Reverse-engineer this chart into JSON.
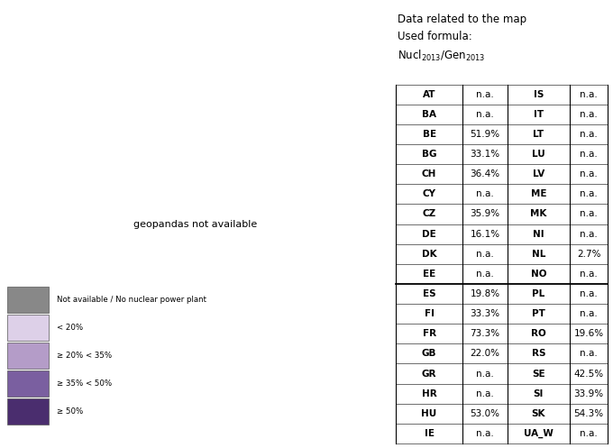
{
  "table_data": [
    [
      "AT",
      "n.a.",
      "IS",
      "n.a."
    ],
    [
      "BA",
      "n.a.",
      "IT",
      "n.a."
    ],
    [
      "BE",
      "51.9%",
      "LT",
      "n.a."
    ],
    [
      "BG",
      "33.1%",
      "LU",
      "n.a."
    ],
    [
      "CH",
      "36.4%",
      "LV",
      "n.a."
    ],
    [
      "CY",
      "n.a.",
      "ME",
      "n.a."
    ],
    [
      "CZ",
      "35.9%",
      "MK",
      "n.a."
    ],
    [
      "DE",
      "16.1%",
      "NI",
      "n.a."
    ],
    [
      "DK",
      "n.a.",
      "NL",
      "2.7%"
    ],
    [
      "EE",
      "n.a.",
      "NO",
      "n.a."
    ],
    [
      "ES",
      "19.8%",
      "PL",
      "n.a."
    ],
    [
      "FI",
      "33.3%",
      "PT",
      "n.a."
    ],
    [
      "FR",
      "73.3%",
      "RO",
      "19.6%"
    ],
    [
      "GB",
      "22.0%",
      "RS",
      "n.a."
    ],
    [
      "GR",
      "n.a.",
      "SE",
      "42.5%"
    ],
    [
      "HR",
      "n.a.",
      "SI",
      "33.9%"
    ],
    [
      "HU",
      "53.0%",
      "SK",
      "54.3%"
    ],
    [
      "IE",
      "n.a.",
      "UA_W",
      "n.a."
    ]
  ],
  "country_values": {
    "AT": null,
    "BA": null,
    "BE": 51.9,
    "BG": 33.1,
    "CH": 36.4,
    "CY": null,
    "CZ": 35.9,
    "DE": 16.1,
    "DK": null,
    "EE": null,
    "ES": 19.8,
    "FI": 33.3,
    "FR": 73.3,
    "GB": 22.0,
    "GR": null,
    "HR": null,
    "HU": 53.0,
    "IE": null,
    "IS": null,
    "IT": null,
    "LT": null,
    "LU": null,
    "LV": null,
    "ME": null,
    "MK": null,
    "NL": 2.7,
    "NO": null,
    "PL": null,
    "PT": null,
    "RO": 19.6,
    "RS": null,
    "SE": 42.5,
    "SI": 33.9,
    "SK": 54.3,
    "UA": null
  },
  "iso_to_code": {
    "AUT": "AT",
    "BIH": "BA",
    "BEL": "BE",
    "BGR": "BG",
    "CHE": "CH",
    "CYP": "CY",
    "CZE": "CZ",
    "DEU": "DE",
    "DNK": "DK",
    "EST": "EE",
    "ESP": "ES",
    "FIN": "FI",
    "FRA": "FR",
    "GBR": "GB",
    "GRC": "GR",
    "HRV": "HR",
    "HUN": "HU",
    "IRL": "IE",
    "ISL": "IS",
    "ITA": "IT",
    "LTU": "LT",
    "LUX": "LU",
    "LVA": "LV",
    "MNE": "ME",
    "MKD": "MK",
    "NLD": "NL",
    "NOR": "NO",
    "POL": "PL",
    "PRT": "PT",
    "ROU": "RO",
    "SRB": "RS",
    "SWE": "SE",
    "SVN": "SI",
    "SVK": "SK",
    "UKR": "UA",
    "MDA": null,
    "BLR": null,
    "ALB": null,
    "XKX": null,
    "MLT": null,
    "AND": null,
    "LIE": null,
    "MCO": null,
    "SMR": null,
    "VAT": null
  },
  "colors": {
    "not_available": "#888888",
    "lt20": "#ddd0e8",
    "lt35": "#b49cc8",
    "lt50": "#7a5fa0",
    "gte50": "#4a2d6e",
    "white": "#ffffff"
  },
  "legend_labels": [
    "Not available / No nuclear power plant",
    "< 20%",
    "≥ 20% < 35%",
    "≥ 35% < 50%",
    "≥ 50%"
  ],
  "legend_colors": [
    "#888888",
    "#ddd0e8",
    "#b49cc8",
    "#7a5fa0",
    "#4a2d6e"
  ],
  "divider_after_row": 10,
  "bg_color": "#ffffff",
  "map_xlim": [
    -25,
    45
  ],
  "map_ylim": [
    34,
    72
  ]
}
